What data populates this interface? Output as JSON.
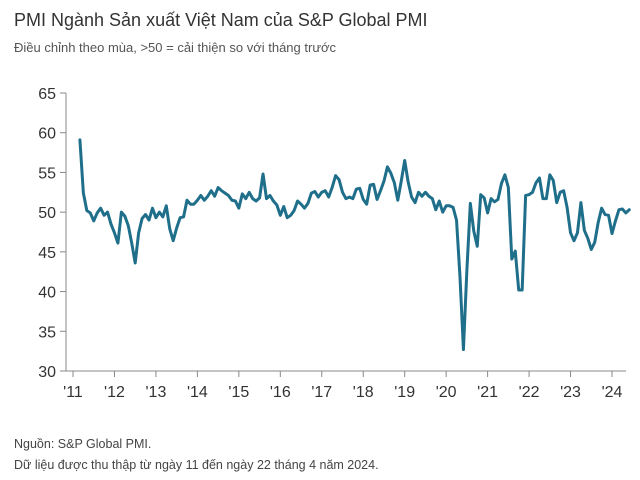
{
  "header": {
    "title": "PMI Ngành Sản xuất Việt Nam của S&P Global PMI",
    "subtitle": "Điều chỉnh theo mùa, >50 = cải thiện so với tháng trước"
  },
  "footer": {
    "source": "Nguồn: S&P Global PMI.",
    "note": "Dữ liệu được thu thập từ ngày 11 đến ngày 22 tháng 4 năm 2024."
  },
  "colors": {
    "line": "#1f6f8b",
    "axis": "#888888"
  },
  "chart_data": {
    "type": "line",
    "title": "PMI Ngành Sản xuất Việt Nam của S&P Global PMI",
    "subtitle": "Điều chỉnh theo mùa, >50 = cải thiện so với tháng trước",
    "xlabel": "",
    "ylabel": "",
    "ylim": [
      30,
      65
    ],
    "yticks": [
      30,
      35,
      40,
      45,
      50,
      55,
      60,
      65
    ],
    "xtick_labels": [
      "'11",
      "'12",
      "'13",
      "'14",
      "'15",
      "'16",
      "'17",
      "'18",
      "'19",
      "'20",
      "'21",
      "'22",
      "'23",
      "'24"
    ],
    "xtick_years": [
      2011,
      2012,
      2013,
      2014,
      2015,
      2016,
      2017,
      2018,
      2019,
      2020,
      2021,
      2022,
      2023,
      2024
    ],
    "x_start": "2011-03",
    "x_end": "2024-04",
    "grid": false,
    "series": [
      {
        "values": [
          59.1,
          52.4,
          50.2,
          49.9,
          48.9,
          49.9,
          50.5,
          49.6,
          50.0,
          48.5,
          47.4,
          46.1,
          50.0,
          49.5,
          48.3,
          46.1,
          43.6,
          47.4,
          49.2,
          49.7,
          49.0,
          50.5,
          49.3,
          50.0,
          49.4,
          50.8,
          47.9,
          46.4,
          48.0,
          49.3,
          49.4,
          51.5,
          51.0,
          51.0,
          51.5,
          52.1,
          51.5,
          52.0,
          52.7,
          52.0,
          53.1,
          52.7,
          52.4,
          52.1,
          51.5,
          51.4,
          50.5,
          52.3,
          51.7,
          52.5,
          51.7,
          51.4,
          51.8,
          54.8,
          51.7,
          52.1,
          51.4,
          50.9,
          49.6,
          50.7,
          49.3,
          49.6,
          50.2,
          51.4,
          51.0,
          50.5,
          51.1,
          52.4,
          52.6,
          51.9,
          52.5,
          52.7,
          51.9,
          53.1,
          54.6,
          54.1,
          52.5,
          51.7,
          51.9,
          51.7,
          52.9,
          53.0,
          51.6,
          51.0,
          53.4,
          53.5,
          51.6,
          52.7,
          53.9,
          55.7,
          54.9,
          53.7,
          51.5,
          53.9,
          56.5,
          53.8,
          51.9,
          51.2,
          52.5,
          52.0,
          52.5,
          52.0,
          51.7,
          50.3,
          51.4,
          50.0,
          50.8,
          50.8,
          50.6,
          49.0,
          41.9,
          32.7,
          42.7,
          51.1,
          47.6,
          45.7,
          52.2,
          51.8,
          49.9,
          51.7,
          51.3,
          51.6,
          53.6,
          54.7,
          53.1,
          44.1,
          45.1,
          40.2,
          40.2,
          52.1,
          52.2,
          52.5,
          53.7,
          54.3,
          51.7,
          51.7,
          54.7,
          54.0,
          51.2,
          52.5,
          52.7,
          50.6,
          47.4,
          46.4,
          47.4,
          51.2,
          47.7,
          46.7,
          45.3,
          46.2,
          48.7,
          50.5,
          49.7,
          49.6,
          47.3,
          48.9,
          50.3,
          50.4,
          49.9,
          50.3
        ]
      }
    ]
  }
}
